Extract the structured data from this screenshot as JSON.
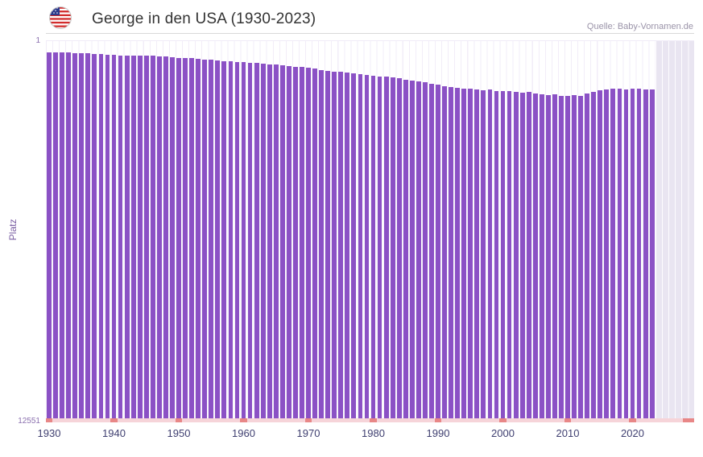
{
  "header": {
    "title": "George in den USA (1930-2023)",
    "source": "Quelle: Baby-Vornamen.de",
    "flag_icon": "us-flag-icon"
  },
  "chart_data": {
    "type": "bar",
    "title": "George in den USA (1930-2023)",
    "xlabel": "",
    "ylabel": "Platz",
    "y_axis_inverted": true,
    "ylim": [
      1,
      12551
    ],
    "y_tick_labels": [
      "1",
      "12551"
    ],
    "x_tick_years": [
      1930,
      1940,
      1950,
      1960,
      1970,
      1980,
      1990,
      2000,
      2010,
      2020
    ],
    "x_slots": 100,
    "y_scale": "power",
    "y_scale_exponent": 0.45,
    "legend_position": "none",
    "grid": "vertical-faint",
    "colors": {
      "bar": "#8b51c5",
      "grid_line": "#f2edf8",
      "future_region": "#e9e5f1",
      "axis_strip": "#f6d4d9",
      "axis_strip_mark": "#e88787",
      "x_tick_label": "#3f3f70",
      "y_tick_label": "#8a6fae",
      "title": "#333333",
      "source": "#9a93a8"
    },
    "years": [
      1930,
      1931,
      1932,
      1933,
      1934,
      1935,
      1936,
      1937,
      1938,
      1939,
      1940,
      1941,
      1942,
      1943,
      1944,
      1945,
      1946,
      1947,
      1948,
      1949,
      1950,
      1951,
      1952,
      1953,
      1954,
      1955,
      1956,
      1957,
      1958,
      1959,
      1960,
      1961,
      1962,
      1963,
      1964,
      1965,
      1966,
      1967,
      1968,
      1969,
      1970,
      1971,
      1972,
      1973,
      1974,
      1975,
      1976,
      1977,
      1978,
      1979,
      1980,
      1981,
      1982,
      1983,
      1984,
      1985,
      1986,
      1987,
      1988,
      1989,
      1990,
      1991,
      1992,
      1993,
      1994,
      1995,
      1996,
      1997,
      1998,
      1999,
      2000,
      2001,
      2002,
      2003,
      2004,
      2005,
      2006,
      2007,
      2008,
      2009,
      2010,
      2011,
      2012,
      2013,
      2014,
      2015,
      2016,
      2017,
      2018,
      2019,
      2020,
      2021,
      2022,
      2023
    ],
    "ranks": [
      5,
      5,
      5,
      5,
      6,
      6,
      6,
      7,
      7,
      8,
      8,
      9,
      9,
      9,
      9,
      9,
      9,
      10,
      10,
      11,
      12,
      13,
      13,
      14,
      15,
      16,
      17,
      18,
      19,
      20,
      21,
      22,
      23,
      24,
      25,
      26,
      29,
      30,
      32,
      33,
      35,
      38,
      42,
      44,
      46,
      48,
      51,
      54,
      57,
      60,
      62,
      64,
      65,
      70,
      74,
      78,
      83,
      88,
      92,
      98,
      104,
      112,
      118,
      122,
      127,
      125,
      131,
      136,
      133,
      139,
      142,
      139,
      147,
      151,
      148,
      156,
      160,
      166,
      163,
      171,
      175,
      169,
      172,
      158,
      146,
      135,
      131,
      128,
      126,
      130,
      125,
      127,
      129,
      131
    ]
  }
}
